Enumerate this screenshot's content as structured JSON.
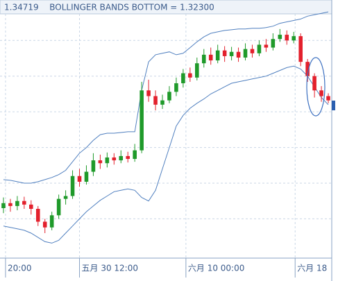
{
  "chart_data": {
    "type": "candlestick",
    "header_value": "1.34719",
    "title": "BOLLINGER BANDS BOTTOM = 1.32300",
    "open": [
      1.3215,
      1.3222,
      1.3218,
      1.3225,
      1.322,
      1.3214,
      1.3196,
      1.3188,
      1.3205,
      1.3228,
      1.3232,
      1.326,
      1.3252,
      1.3266,
      1.3282,
      1.3278,
      1.3286,
      1.3282,
      1.3288,
      1.3284,
      1.3296,
      1.338,
      1.3372,
      1.336,
      1.3366,
      1.3378,
      1.339,
      1.3404,
      1.3398,
      1.3418,
      1.343,
      1.3422,
      1.3436,
      1.3428,
      1.3434,
      1.3426,
      1.3438,
      1.3432,
      1.3444,
      1.344,
      1.3452,
      1.3458,
      1.345,
      1.3456,
      1.342,
      1.34,
      1.338,
      1.3372
    ],
    "close": [
      1.3222,
      1.3218,
      1.3225,
      1.322,
      1.3214,
      1.3196,
      1.3188,
      1.3205,
      1.3228,
      1.3232,
      1.326,
      1.3252,
      1.3266,
      1.3282,
      1.3278,
      1.3286,
      1.3282,
      1.3288,
      1.3284,
      1.3296,
      1.338,
      1.3372,
      1.336,
      1.3366,
      1.3378,
      1.339,
      1.3404,
      1.3398,
      1.3418,
      1.343,
      1.3422,
      1.3436,
      1.3428,
      1.3434,
      1.3426,
      1.3438,
      1.3432,
      1.3444,
      1.344,
      1.3452,
      1.3458,
      1.345,
      1.3456,
      1.342,
      1.34,
      1.338,
      1.3372,
      1.3366
    ],
    "high": [
      1.323,
      1.3228,
      1.3232,
      1.3231,
      1.3226,
      1.3218,
      1.32,
      1.321,
      1.3234,
      1.324,
      1.3268,
      1.327,
      1.3275,
      1.3292,
      1.329,
      1.3293,
      1.3292,
      1.3296,
      1.3294,
      1.3305,
      1.3392,
      1.3395,
      1.338,
      1.3374,
      1.3386,
      1.3398,
      1.341,
      1.3412,
      1.3426,
      1.3438,
      1.344,
      1.3444,
      1.3442,
      1.3441,
      1.344,
      1.3446,
      1.3444,
      1.345,
      1.3452,
      1.346,
      1.3466,
      1.3464,
      1.3462,
      1.346,
      1.3424,
      1.3404,
      1.3386,
      1.3376
    ],
    "low": [
      1.3208,
      1.321,
      1.3212,
      1.3214,
      1.3206,
      1.319,
      1.318,
      1.3184,
      1.32,
      1.322,
      1.3228,
      1.3245,
      1.3248,
      1.326,
      1.327,
      1.3272,
      1.3276,
      1.3278,
      1.3279,
      1.328,
      1.3292,
      1.3364,
      1.3352,
      1.3354,
      1.3362,
      1.3372,
      1.3384,
      1.3392,
      1.3394,
      1.3412,
      1.3416,
      1.3418,
      1.342,
      1.3422,
      1.342,
      1.3422,
      1.3426,
      1.3428,
      1.3434,
      1.3436,
      1.3448,
      1.3444,
      1.3446,
      1.3414,
      1.3392,
      1.337,
      1.3364,
      1.3362
    ],
    "up_color": "#1f9a2a",
    "down_color": "#e3202c",
    "bands": {
      "color": "#4f7fbf",
      "upper": [
        1.3255,
        1.3254,
        1.3252,
        1.325,
        1.325,
        1.3252,
        1.3255,
        1.3258,
        1.3262,
        1.3268,
        1.328,
        1.3292,
        1.33,
        1.331,
        1.3318,
        1.332,
        1.332,
        1.3321,
        1.3322,
        1.3322,
        1.338,
        1.342,
        1.343,
        1.3432,
        1.3434,
        1.343,
        1.3432,
        1.344,
        1.3448,
        1.3455,
        1.346,
        1.3462,
        1.3464,
        1.3465,
        1.3466,
        1.3466,
        1.3467,
        1.3467,
        1.3468,
        1.347,
        1.3474,
        1.3476,
        1.3478,
        1.348,
        1.3484,
        1.3486,
        1.3488,
        1.349
      ],
      "lower": [
        1.319,
        1.3188,
        1.3186,
        1.3184,
        1.318,
        1.3174,
        1.3168,
        1.3166,
        1.317,
        1.318,
        1.319,
        1.32,
        1.321,
        1.3218,
        1.3226,
        1.3232,
        1.3238,
        1.324,
        1.3242,
        1.324,
        1.323,
        1.3225,
        1.324,
        1.327,
        1.33,
        1.333,
        1.3345,
        1.3355,
        1.3362,
        1.3368,
        1.3375,
        1.338,
        1.3385,
        1.339,
        1.3392,
        1.3394,
        1.3396,
        1.3398,
        1.34,
        1.3404,
        1.3408,
        1.3412,
        1.3414,
        1.341,
        1.34,
        1.3385,
        1.337,
        1.336
      ]
    },
    "ylim": [
      1.3145,
      1.3495
    ],
    "ygrid": [
      1.32,
      1.325,
      1.33,
      1.335,
      1.34,
      1.345
    ],
    "xlim": [
      0,
      48
    ],
    "xticks": [
      {
        "value": 0.8,
        "label": "20:00"
      },
      {
        "value": 11.5,
        "label": "五月 30 12:00"
      },
      {
        "value": 26.9,
        "label": "六月 10 00:00"
      },
      {
        "value": 42.7,
        "label": "六月 18"
      }
    ],
    "grid": true
  }
}
